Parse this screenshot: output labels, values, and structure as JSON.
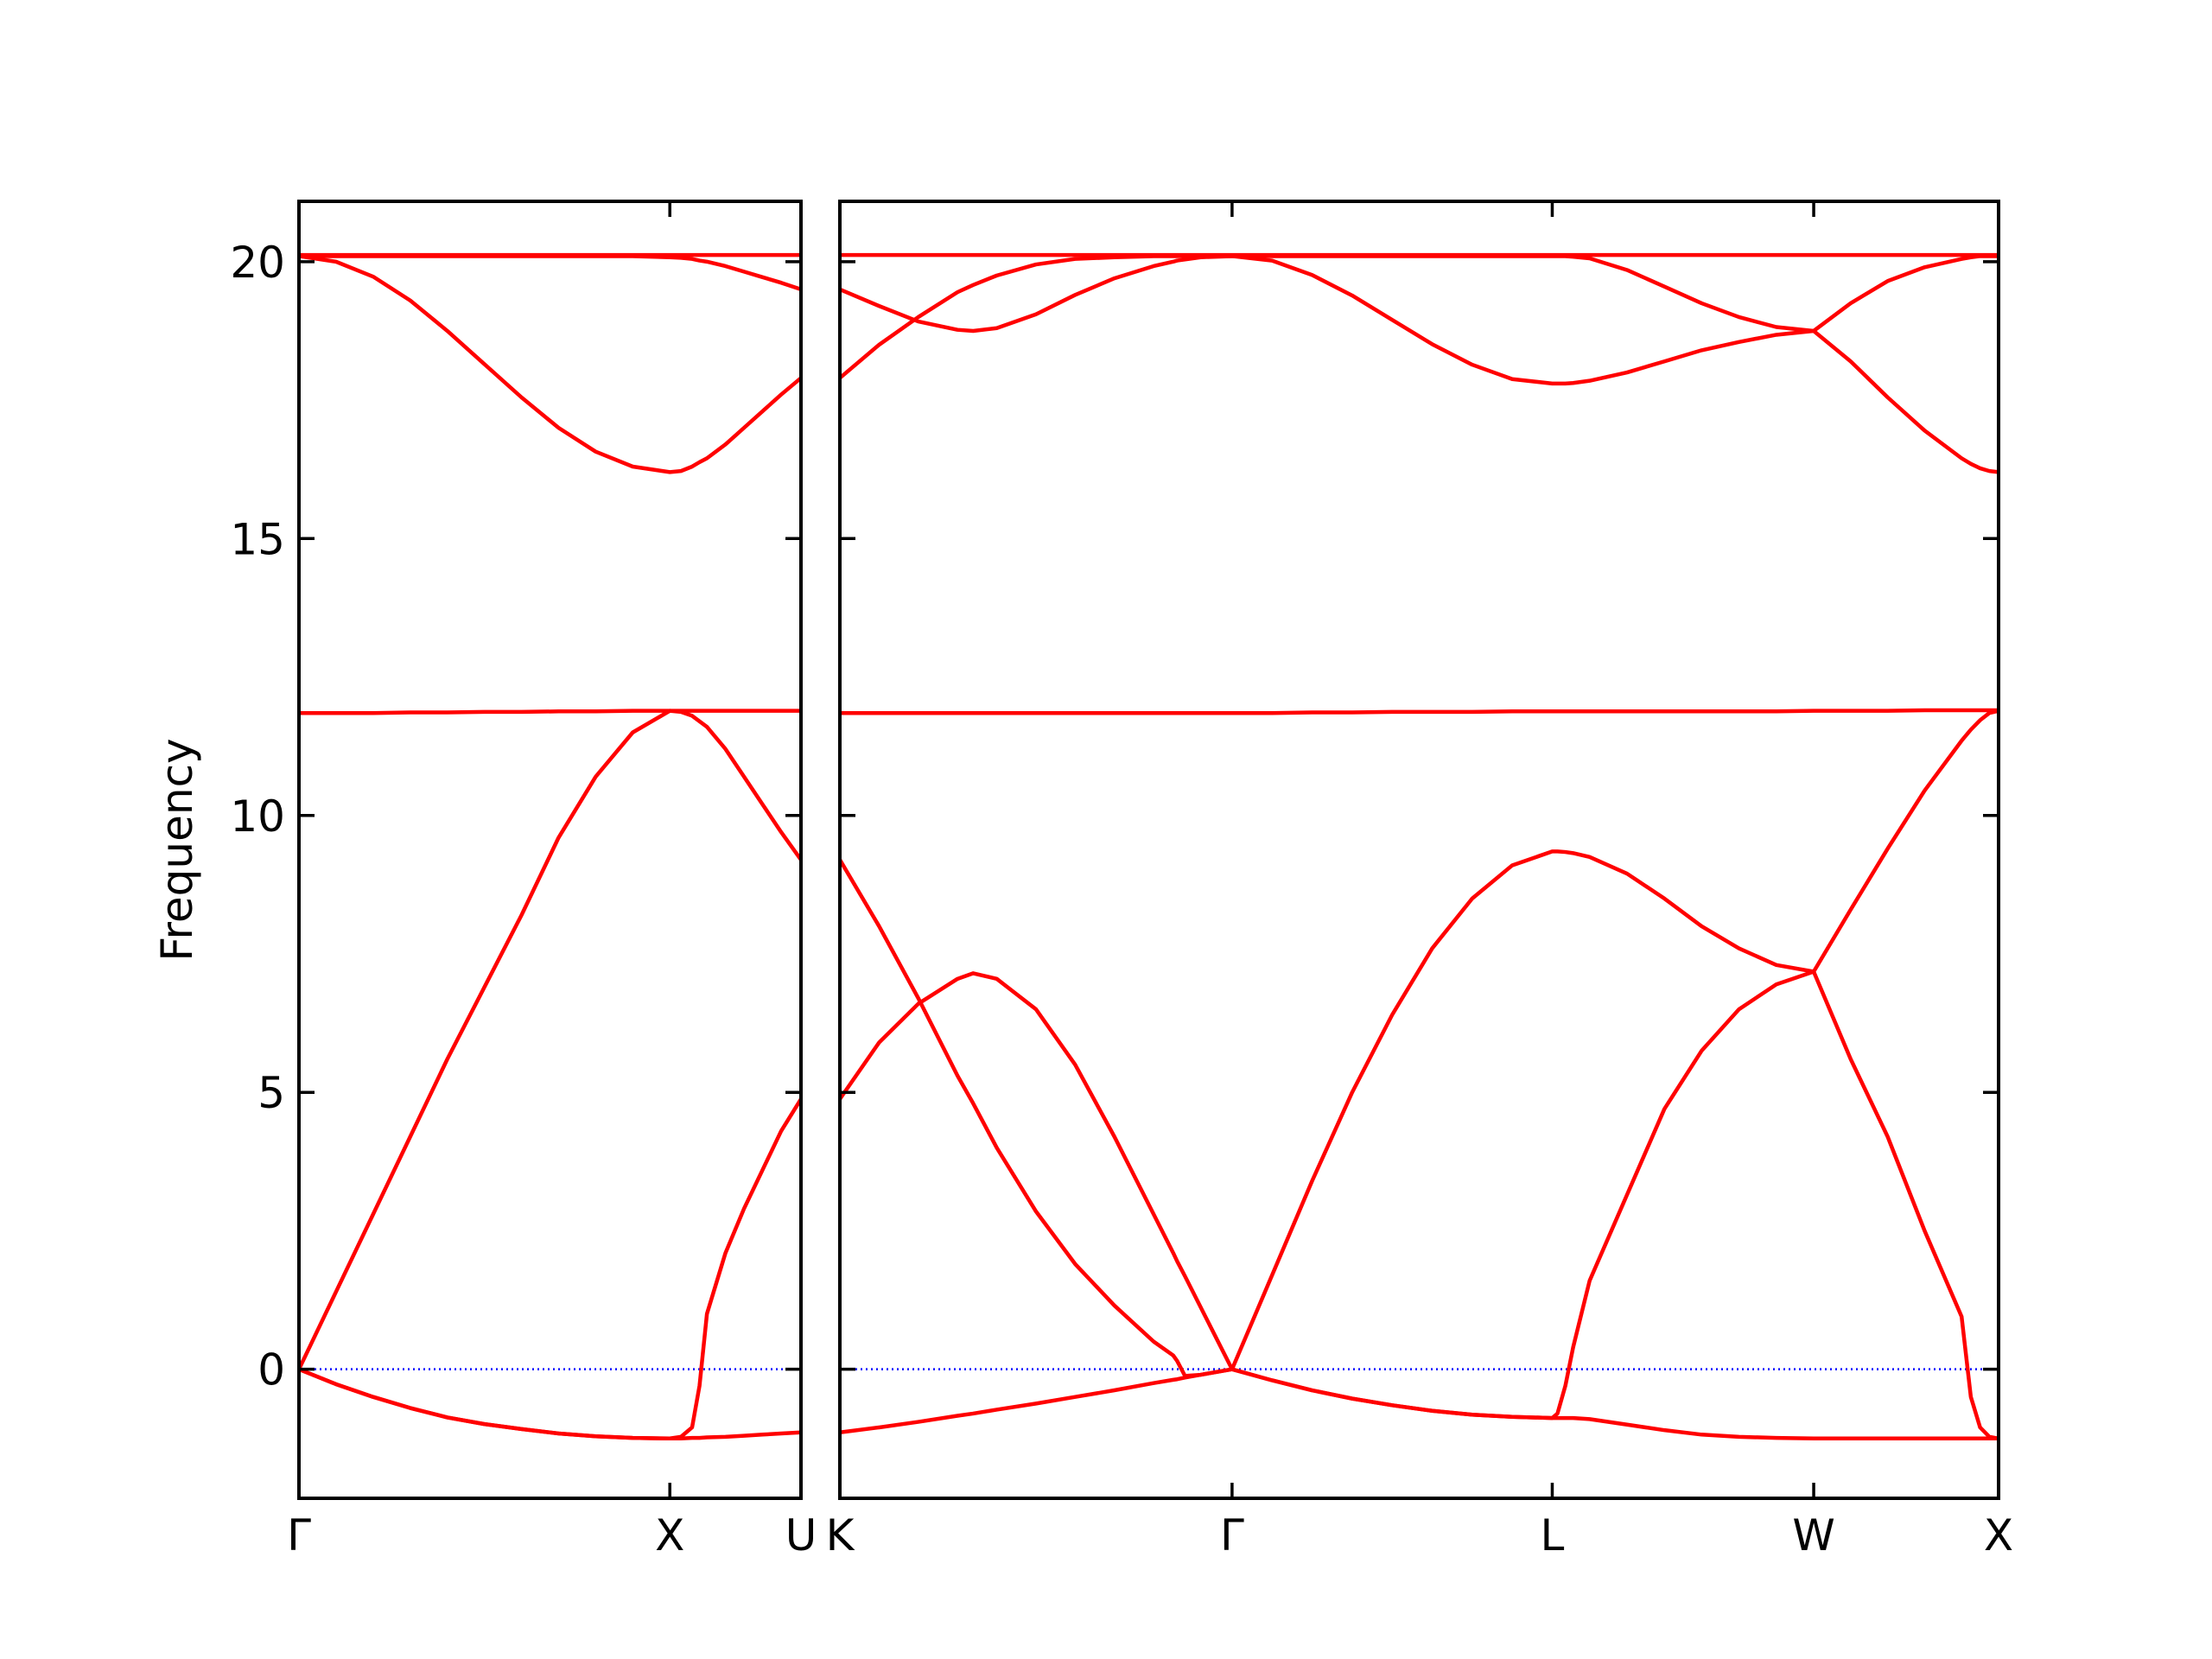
{
  "chart_data": [
    {
      "type": "line",
      "ylabel": "Frequency",
      "x": [
        0,
        0.1,
        0.2,
        0.3,
        0.4,
        0.5,
        0.6,
        0.7,
        0.8,
        0.9,
        1.0,
        1.03,
        1.06,
        1.08,
        1.1,
        1.15,
        1.2,
        1.25,
        1.3,
        1.3536
      ],
      "series": [
        {
          "color": "#ff0000",
          "values": [
            0,
            -0.27,
            -0.5,
            -0.7,
            -0.87,
            -0.99,
            -1.08,
            -1.16,
            -1.21,
            -1.24,
            -1.25,
            -1.25,
            -1.24,
            -1.24,
            -1.23,
            -1.22,
            -1.2,
            -1.18,
            -1.16,
            -1.14
          ]
        },
        {
          "color": "#ff0000",
          "values": [
            0,
            -0.27,
            -0.5,
            -0.7,
            -0.87,
            -0.99,
            -1.08,
            -1.16,
            -1.21,
            -1.24,
            -1.25,
            -1.22,
            -1.05,
            -0.3,
            1.0,
            2.1,
            2.9,
            3.6,
            4.3,
            4.88
          ]
        },
        {
          "color": "#ff0000",
          "values": [
            0,
            1.4,
            2.8,
            4.2,
            5.6,
            6.9,
            8.2,
            9.6,
            10.7,
            11.5,
            11.89,
            11.87,
            11.8,
            11.7,
            11.6,
            11.2,
            10.7,
            10.2,
            9.7,
            9.2
          ]
        },
        {
          "color": "#ff0000",
          "values": [
            11.85,
            11.85,
            11.85,
            11.86,
            11.86,
            11.87,
            11.87,
            11.88,
            11.88,
            11.89,
            11.89,
            11.89,
            11.89,
            11.89,
            11.89,
            11.89,
            11.89,
            11.89,
            11.89,
            11.89
          ]
        },
        {
          "color": "#ff0000",
          "values": [
            20.1,
            20.0,
            19.73,
            19.3,
            18.75,
            18.15,
            17.55,
            17.0,
            16.57,
            16.3,
            16.2,
            16.22,
            16.3,
            16.38,
            16.45,
            16.7,
            17.0,
            17.3,
            17.6,
            17.9
          ]
        },
        {
          "color": "#ff0000",
          "values": [
            20.1,
            20.1,
            20.1,
            20.1,
            20.1,
            20.1,
            20.1,
            20.1,
            20.1,
            20.1,
            20.08,
            20.07,
            20.05,
            20.02,
            20.0,
            19.92,
            19.82,
            19.72,
            19.62,
            19.5
          ]
        },
        {
          "color": "#ff0000",
          "values": [
            20.12,
            20.12,
            20.12,
            20.12,
            20.12,
            20.12,
            20.12,
            20.12,
            20.12,
            20.12,
            20.12,
            20.12,
            20.12,
            20.12,
            20.12,
            20.12,
            20.12,
            20.12,
            20.12,
            20.12
          ]
        }
      ],
      "xlim": [
        0,
        1.3536
      ],
      "ylim": [
        -2.33,
        21.09
      ],
      "xticks": [
        {
          "value": 0,
          "label": "Γ"
        },
        {
          "value": 1.0,
          "label": "X"
        },
        {
          "value": 1.3536,
          "label": "U"
        }
      ],
      "yticks": [
        0,
        5,
        10,
        15,
        20
      ],
      "show_ytick_labels": true,
      "zero_line": {
        "y": 0,
        "color": "#0000ff"
      }
    },
    {
      "type": "line",
      "x": [
        1.3536,
        1.4597,
        1.5657,
        1.6718,
        1.7142,
        1.7779,
        1.884,
        1.99,
        2.0961,
        2.2022,
        2.2552,
        2.2658,
        2.287,
        2.3294,
        2.4143,
        2.5226,
        2.6308,
        2.7391,
        2.8473,
        2.9556,
        3.0638,
        3.1721,
        3.2803,
        3.2944,
        3.3157,
        3.3369,
        3.3814,
        3.4825,
        3.5836,
        3.6841,
        3.7852,
        3.8863,
        3.9874,
        4.0874,
        4.1874,
        4.2874,
        4.3874,
        4.4124,
        4.4374,
        4.4624,
        4.4874
      ],
      "series": [
        {
          "color": "#ff0000",
          "values": [
            -1.14,
            -1.05,
            -0.95,
            -0.84,
            -0.8,
            -0.73,
            -0.62,
            -0.5,
            -0.38,
            -0.25,
            -0.19,
            -0.18,
            -0.15,
            -0.1,
            0,
            -0.2,
            -0.38,
            -0.53,
            -0.65,
            -0.75,
            -0.82,
            -0.86,
            -0.88,
            -0.88,
            -0.88,
            -0.88,
            -0.9,
            -1.0,
            -1.1,
            -1.18,
            -1.22,
            -1.24,
            -1.25,
            -1.25,
            -1.25,
            -1.25,
            -1.25,
            -1.25,
            -1.25,
            -1.25,
            -1.25
          ]
        },
        {
          "color": "#ff0000",
          "values": [
            4.88,
            5.9,
            6.6,
            7.05,
            7.15,
            7.05,
            6.5,
            5.5,
            4.2,
            2.8,
            2.1,
            1.95,
            1.68,
            1.12,
            0,
            1.7,
            3.4,
            5.0,
            6.4,
            7.6,
            8.5,
            9.1,
            9.35,
            9.35,
            9.34,
            9.32,
            9.25,
            8.95,
            8.5,
            8.0,
            7.6,
            7.3,
            7.18,
            8.3,
            9.4,
            10.45,
            11.35,
            11.55,
            11.72,
            11.85,
            11.89
          ]
        },
        {
          "color": "#ff0000",
          "values": [
            9.2,
            8.0,
            6.7,
            5.3,
            4.8,
            4.0,
            2.85,
            1.9,
            1.15,
            0.5,
            0.25,
            0.15,
            -0.12,
            -0.1,
            0,
            -0.2,
            -0.38,
            -0.53,
            -0.65,
            -0.75,
            -0.82,
            -0.86,
            -0.88,
            -0.8,
            -0.3,
            0.4,
            1.6,
            3.15,
            4.7,
            5.75,
            6.5,
            6.95,
            7.18,
            5.6,
            4.2,
            2.5,
            0.95,
            -0.5,
            -1.05,
            -1.22,
            -1.25
          ]
        },
        {
          "color": "#ff0000",
          "values": [
            11.85,
            11.85,
            11.85,
            11.85,
            11.85,
            11.85,
            11.85,
            11.85,
            11.85,
            11.85,
            11.85,
            11.85,
            11.85,
            11.85,
            11.85,
            11.85,
            11.86,
            11.86,
            11.87,
            11.87,
            11.87,
            11.88,
            11.88,
            11.88,
            11.88,
            11.88,
            11.88,
            11.88,
            11.88,
            11.88,
            11.88,
            11.88,
            11.89,
            11.89,
            11.89,
            11.9,
            11.9,
            11.9,
            11.9,
            11.9,
            11.9
          ]
        },
        {
          "color": "#ff0000",
          "values": [
            19.5,
            19.2,
            18.92,
            18.77,
            18.75,
            18.8,
            19.05,
            19.4,
            19.7,
            19.92,
            20.0,
            20.02,
            20.04,
            20.08,
            20.1,
            20.1,
            20.1,
            20.1,
            20.1,
            20.1,
            20.1,
            20.1,
            20.1,
            20.1,
            20.1,
            20.09,
            20.06,
            19.85,
            19.55,
            19.25,
            19.0,
            18.82,
            18.75,
            18.2,
            17.55,
            16.95,
            16.45,
            16.35,
            16.27,
            16.22,
            16.2
          ]
        },
        {
          "color": "#ff0000",
          "values": [
            17.9,
            18.5,
            19.0,
            19.45,
            19.58,
            19.75,
            19.95,
            20.05,
            20.08,
            20.1,
            20.1,
            20.1,
            20.1,
            20.1,
            20.1,
            20.02,
            19.76,
            19.39,
            18.95,
            18.51,
            18.14,
            17.88,
            17.8,
            17.8,
            17.8,
            17.81,
            17.85,
            18.0,
            18.2,
            18.4,
            18.55,
            18.68,
            18.75,
            19.25,
            19.65,
            19.9,
            20.05,
            20.08,
            20.1,
            20.1,
            20.1
          ]
        },
        {
          "color": "#ff0000",
          "values": [
            20.12,
            20.12,
            20.12,
            20.12,
            20.12,
            20.12,
            20.12,
            20.12,
            20.12,
            20.12,
            20.12,
            20.12,
            20.12,
            20.12,
            20.12,
            20.12,
            20.12,
            20.12,
            20.12,
            20.12,
            20.12,
            20.12,
            20.12,
            20.12,
            20.12,
            20.12,
            20.12,
            20.12,
            20.12,
            20.12,
            20.12,
            20.12,
            20.12,
            20.12,
            20.12,
            20.12,
            20.12,
            20.12,
            20.12,
            20.12,
            20.12
          ]
        }
      ],
      "xlim": [
        1.3536,
        4.4874
      ],
      "ylim": [
        -2.33,
        21.09
      ],
      "xticks": [
        {
          "value": 1.3536,
          "label": "K"
        },
        {
          "value": 2.4143,
          "label": "Γ"
        },
        {
          "value": 3.2803,
          "label": "L"
        },
        {
          "value": 3.9874,
          "label": "W"
        },
        {
          "value": 4.4874,
          "label": "X"
        }
      ],
      "yticks": [
        0,
        5,
        10,
        15,
        20
      ],
      "show_ytick_labels": false,
      "zero_line": {
        "y": 0,
        "color": "#0000ff"
      }
    }
  ]
}
